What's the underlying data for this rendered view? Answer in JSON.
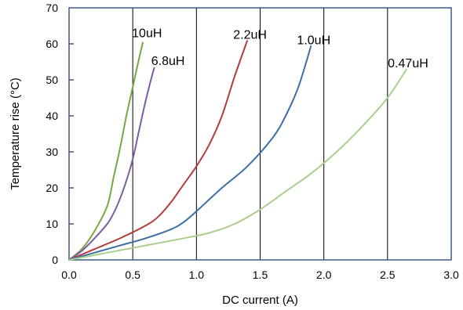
{
  "chart_data": {
    "type": "line",
    "title": "",
    "xlabel": "DC current (A)",
    "ylabel": "Temperature rise (°C)",
    "xlim": [
      0,
      3
    ],
    "ylim": [
      0,
      70
    ],
    "x_ticks": [
      "0.0",
      "0.5",
      "1.0",
      "1.5",
      "2.0",
      "2.5",
      "3.0"
    ],
    "y_ticks": [
      "0",
      "10",
      "20",
      "30",
      "40",
      "50",
      "60",
      "70"
    ],
    "grid": "vertical",
    "legend": "none",
    "series": [
      {
        "name": "10uH",
        "color": "#77a843",
        "points": [
          [
            0,
            0
          ],
          [
            0.1,
            3
          ],
          [
            0.2,
            8
          ],
          [
            0.3,
            15
          ],
          [
            0.35,
            23
          ],
          [
            0.4,
            31
          ],
          [
            0.45,
            40
          ],
          [
            0.5,
            48
          ],
          [
            0.55,
            56
          ],
          [
            0.58,
            60.5
          ]
        ]
      },
      {
        "name": "6.8uH",
        "color": "#7d5ba6",
        "points": [
          [
            0,
            0
          ],
          [
            0.1,
            2.5
          ],
          [
            0.2,
            6
          ],
          [
            0.3,
            10
          ],
          [
            0.35,
            13
          ],
          [
            0.4,
            17
          ],
          [
            0.45,
            22
          ],
          [
            0.5,
            28
          ],
          [
            0.55,
            36
          ],
          [
            0.6,
            44
          ],
          [
            0.65,
            51
          ],
          [
            0.67,
            53.5
          ]
        ]
      },
      {
        "name": "2.2uH",
        "color": "#b23c3c",
        "points": [
          [
            0,
            0
          ],
          [
            0.2,
            3
          ],
          [
            0.4,
            6
          ],
          [
            0.6,
            9.5
          ],
          [
            0.7,
            12
          ],
          [
            0.8,
            16
          ],
          [
            0.9,
            21
          ],
          [
            1.0,
            26
          ],
          [
            1.1,
            32
          ],
          [
            1.2,
            40
          ],
          [
            1.3,
            51
          ],
          [
            1.4,
            61
          ]
        ]
      },
      {
        "name": "1.0uH",
        "color": "#3c6ea8",
        "points": [
          [
            0,
            0
          ],
          [
            0.2,
            2
          ],
          [
            0.4,
            4
          ],
          [
            0.6,
            6
          ],
          [
            0.8,
            8.5
          ],
          [
            0.9,
            10.5
          ],
          [
            1.0,
            13.5
          ],
          [
            1.2,
            20
          ],
          [
            1.4,
            26
          ],
          [
            1.6,
            34
          ],
          [
            1.7,
            40
          ],
          [
            1.8,
            48
          ],
          [
            1.9,
            59.5
          ]
        ]
      },
      {
        "name": "0.47uH",
        "color": "#a9cf8c",
        "points": [
          [
            0,
            0
          ],
          [
            0.3,
            2
          ],
          [
            0.6,
            4
          ],
          [
            0.9,
            6
          ],
          [
            1.1,
            7.5
          ],
          [
            1.3,
            10
          ],
          [
            1.5,
            14
          ],
          [
            1.7,
            19
          ],
          [
            1.9,
            24
          ],
          [
            2.1,
            30
          ],
          [
            2.3,
            37
          ],
          [
            2.5,
            45
          ],
          [
            2.65,
            53
          ]
        ]
      }
    ]
  }
}
